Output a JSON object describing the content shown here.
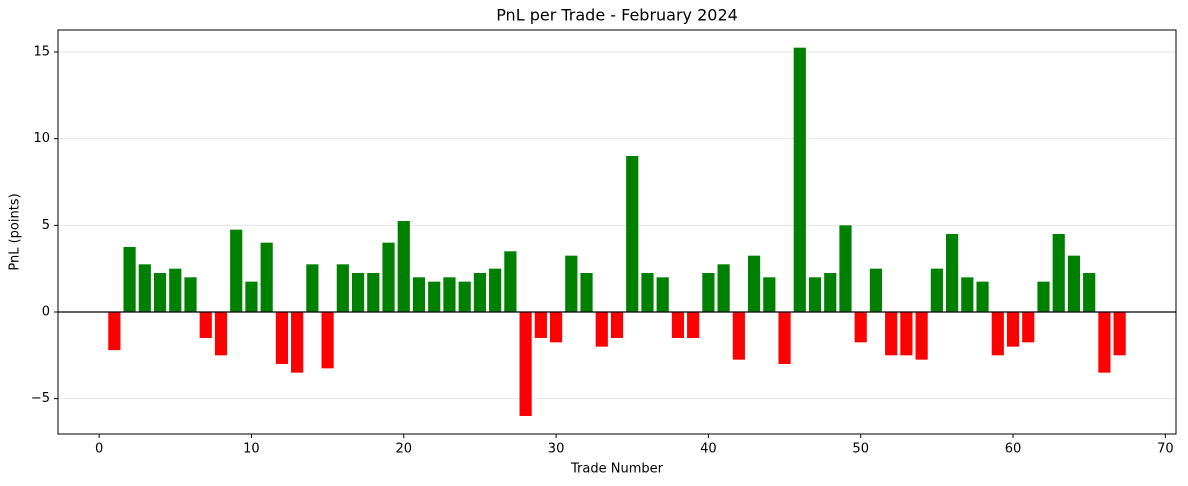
{
  "chart_data": {
    "type": "bar",
    "title": "PnL per Trade - February 2024",
    "xlabel": "Trade Number",
    "ylabel": "PnL (points)",
    "x": [
      1,
      2,
      3,
      4,
      5,
      6,
      7,
      8,
      9,
      10,
      11,
      12,
      13,
      14,
      15,
      16,
      17,
      18,
      19,
      20,
      21,
      22,
      23,
      24,
      25,
      26,
      27,
      28,
      29,
      30,
      31,
      32,
      33,
      34,
      35,
      36,
      37,
      38,
      39,
      40,
      41,
      42,
      43,
      44,
      45,
      46,
      47,
      48,
      49,
      50,
      51,
      52,
      53,
      54,
      55,
      56,
      57,
      58,
      59,
      60,
      61,
      62,
      63,
      64,
      65,
      66,
      67
    ],
    "values": [
      -2.2,
      3.75,
      2.75,
      2.25,
      2.5,
      2.0,
      -1.5,
      -2.5,
      4.75,
      1.75,
      4.0,
      -3.0,
      -3.5,
      2.75,
      -3.25,
      2.75,
      2.25,
      2.25,
      4.0,
      5.25,
      2.0,
      1.75,
      2.0,
      1.75,
      2.25,
      2.5,
      3.5,
      -6.0,
      -1.5,
      -1.75,
      3.25,
      2.25,
      -2.0,
      -1.5,
      9.0,
      2.25,
      2.0,
      -1.5,
      -1.5,
      2.25,
      2.75,
      -2.75,
      3.25,
      2.0,
      -3.0,
      15.25,
      2.0,
      2.25,
      5.0,
      -1.75,
      2.5,
      -2.5,
      -2.5,
      -2.75,
      2.5,
      4.5,
      2.0,
      1.75,
      -2.5,
      -2.0,
      -1.75,
      1.75,
      4.5,
      3.25,
      2.25,
      -3.5,
      -2.5
    ],
    "positive_color": "#008000",
    "negative_color": "#ff0000",
    "reference_line": 0,
    "xlim": [
      -2.7,
      70.7
    ],
    "xticks": [
      0,
      10,
      20,
      30,
      40,
      50,
      60,
      70
    ],
    "ylim": [
      -7.04,
      16.27
    ],
    "yticks": [
      {
        "value": -5,
        "label": "−5"
      },
      0,
      5,
      10,
      15
    ],
    "grid": true
  }
}
